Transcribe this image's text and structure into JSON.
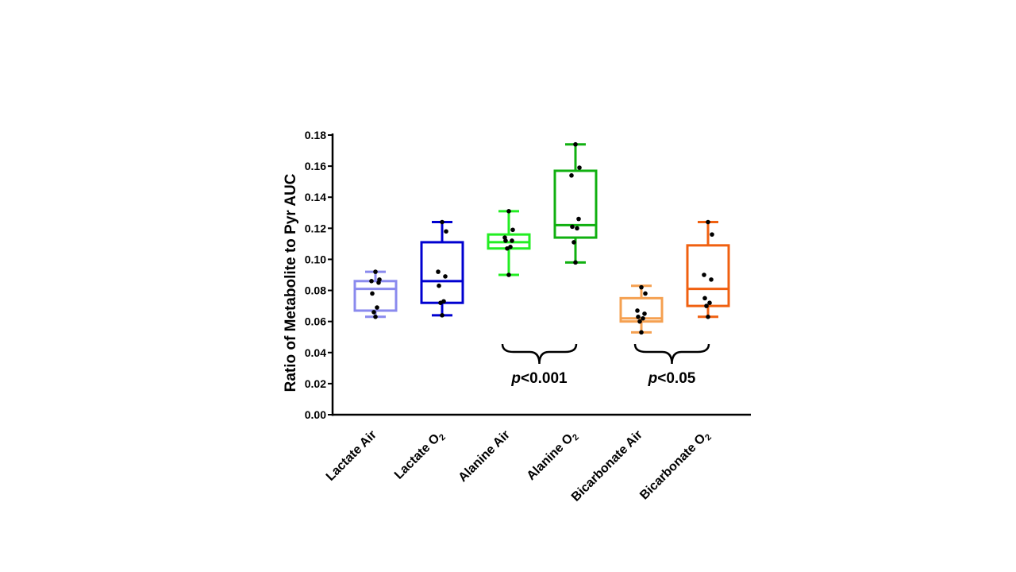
{
  "chart_data": {
    "type": "box",
    "ylabel": "Ratio of Metabolite to Pyr AUC",
    "ylim": [
      0,
      0.18
    ],
    "yticks": [
      0.0,
      0.02,
      0.04,
      0.06,
      0.08,
      0.1,
      0.12,
      0.14,
      0.16,
      0.18
    ],
    "ytick_labels": [
      "0.00",
      "0.02",
      "0.04",
      "0.06",
      "0.08",
      "0.10",
      "0.12",
      "0.14",
      "0.16",
      "0.18"
    ],
    "series": [
      {
        "name": "Lactate Air",
        "label_main": "Lactate Air",
        "label_sub": "",
        "color": "#8a8aee",
        "min": 0.063,
        "q1": 0.067,
        "median": 0.081,
        "q3": 0.086,
        "max": 0.092,
        "points": [
          0.092,
          0.087,
          0.086,
          0.085,
          0.078,
          0.069,
          0.066,
          0.063
        ]
      },
      {
        "name": "Lactate O2",
        "label_main": "Lactate O",
        "label_sub": "2",
        "color": "#0000d0",
        "min": 0.064,
        "q1": 0.072,
        "median": 0.086,
        "q3": 0.111,
        "max": 0.124,
        "points": [
          0.124,
          0.118,
          0.092,
          0.089,
          0.083,
          0.073,
          0.072,
          0.064
        ]
      },
      {
        "name": "Alanine Air",
        "label_main": "Alanine Air",
        "label_sub": "",
        "color": "#22ee22",
        "min": 0.09,
        "q1": 0.107,
        "median": 0.111,
        "q3": 0.116,
        "max": 0.131,
        "points": [
          0.131,
          0.119,
          0.114,
          0.112,
          0.112,
          0.108,
          0.107,
          0.09
        ]
      },
      {
        "name": "Alanine O2",
        "label_main": "Alanine O",
        "label_sub": "2",
        "color": "#10b010",
        "min": 0.098,
        "q1": 0.114,
        "median": 0.122,
        "q3": 0.157,
        "max": 0.174,
        "points": [
          0.174,
          0.159,
          0.154,
          0.126,
          0.121,
          0.12,
          0.111,
          0.098
        ]
      },
      {
        "name": "Bicarbonate Air",
        "label_main": "Bicarbonate Air",
        "label_sub": "",
        "color": "#f5a050",
        "min": 0.053,
        "q1": 0.06,
        "median": 0.062,
        "q3": 0.075,
        "max": 0.083,
        "points": [
          0.082,
          0.078,
          0.067,
          0.065,
          0.063,
          0.062,
          0.06,
          0.053
        ]
      },
      {
        "name": "Bicarbonate O2",
        "label_main": "Bicarbonate O",
        "label_sub": "2",
        "color": "#f06010",
        "min": 0.063,
        "q1": 0.07,
        "median": 0.081,
        "q3": 0.109,
        "max": 0.124,
        "points": [
          0.124,
          0.116,
          0.09,
          0.087,
          0.075,
          0.072,
          0.07,
          0.063
        ]
      }
    ],
    "annotations": [
      {
        "groups": [
          2,
          3
        ],
        "italic": "p",
        "text": "<0.001"
      },
      {
        "groups": [
          4,
          5
        ],
        "italic": "p",
        "text": "<0.05"
      }
    ]
  }
}
